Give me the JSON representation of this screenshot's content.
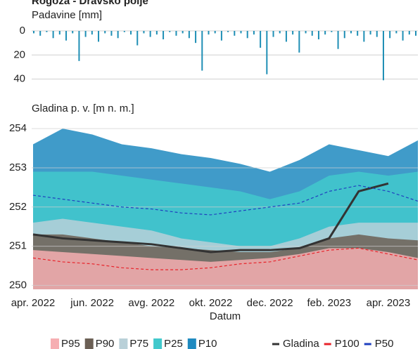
{
  "chart_data": [
    {
      "type": "bar",
      "title": "Rogoza - Dravsko polje",
      "ylabel": "Padavine [mm]",
      "color": "#1f8fb5",
      "ylim": [
        0,
        42
      ],
      "yticks": [
        0,
        20,
        40
      ],
      "inverted": true,
      "grid": true,
      "values": [
        2,
        4,
        1,
        6,
        3,
        8,
        2,
        25,
        5,
        3,
        9,
        2,
        4,
        6,
        1,
        3,
        12,
        2,
        5,
        3,
        7,
        1,
        4,
        2,
        6,
        10,
        33,
        3,
        2,
        8,
        1,
        4,
        2,
        6,
        3,
        14,
        36,
        5,
        2,
        9,
        3,
        18,
        2,
        4,
        7,
        3,
        1,
        15,
        6,
        2,
        4,
        9,
        3,
        5,
        41,
        6,
        2,
        8,
        3,
        4
      ]
    },
    {
      "type": "area",
      "ylabel": "Gladina p. v. [m n. m.]",
      "xlabel": "Datum",
      "x": [
        "2022-04",
        "2022-05",
        "2022-06",
        "2022-07",
        "2022-08",
        "2022-09",
        "2022-10",
        "2022-11",
        "2022-12",
        "2023-01",
        "2023-02",
        "2023-03",
        "2023-04",
        "2023-05"
      ],
      "xlim": [
        "2022-04",
        "2023-05"
      ],
      "xticks": [
        {
          "value": "2022-04",
          "label": "apr. 2022"
        },
        {
          "value": "2022-06",
          "label": "jun. 2022"
        },
        {
          "value": "2022-08",
          "label": "avg. 2022"
        },
        {
          "value": "2022-10",
          "label": "okt. 2022"
        },
        {
          "value": "2022-12",
          "label": "dec. 2022"
        },
        {
          "value": "2023-02",
          "label": "feb. 2023"
        },
        {
          "value": "2023-04",
          "label": "apr. 2023"
        }
      ],
      "ylim": [
        249.9,
        254.2
      ],
      "yticks": [
        250,
        251,
        252,
        253,
        254
      ],
      "grid": true,
      "series": [
        {
          "name": "P95",
          "color": "#f6aeb2",
          "kind": "area",
          "values": [
            250.9,
            250.85,
            250.8,
            250.75,
            250.7,
            250.65,
            250.6,
            250.65,
            250.7,
            250.8,
            250.95,
            250.95,
            250.85,
            250.7
          ]
        },
        {
          "name": "P90",
          "color": "#6b5f55",
          "kind": "area",
          "values": [
            251.3,
            251.3,
            251.2,
            251.1,
            251.0,
            250.95,
            250.9,
            250.85,
            250.85,
            250.95,
            251.2,
            251.3,
            251.2,
            251.15
          ]
        },
        {
          "name": "P75",
          "color": "#b9d0d8",
          "kind": "area",
          "values": [
            251.6,
            251.7,
            251.6,
            251.5,
            251.4,
            251.2,
            251.1,
            251.0,
            251.0,
            251.2,
            251.5,
            251.6,
            251.6,
            251.6
          ]
        },
        {
          "name": "P25",
          "color": "#42c9cc",
          "kind": "area",
          "values": [
            252.9,
            252.9,
            252.9,
            252.8,
            252.7,
            252.6,
            252.5,
            252.4,
            252.2,
            252.4,
            252.8,
            252.9,
            252.8,
            252.9
          ]
        },
        {
          "name": "P10",
          "color": "#1f8ac0",
          "kind": "area",
          "values": [
            253.6,
            254.0,
            253.85,
            253.6,
            253.5,
            253.35,
            253.25,
            253.1,
            252.9,
            253.2,
            253.6,
            253.45,
            253.3,
            253.7
          ]
        },
        {
          "name": "Gladina",
          "color": "#333333",
          "kind": "line",
          "values": [
            251.3,
            251.2,
            251.15,
            251.1,
            251.05,
            250.95,
            250.85,
            250.9,
            250.9,
            250.95,
            251.2,
            252.4,
            252.6,
            null
          ]
        },
        {
          "name": "P100",
          "color": "#e8232a",
          "kind": "dashed",
          "values": [
            250.7,
            250.6,
            250.55,
            250.45,
            250.4,
            250.4,
            250.45,
            250.55,
            250.6,
            250.75,
            250.9,
            250.95,
            250.8,
            250.65
          ]
        },
        {
          "name": "P50",
          "color": "#1f3fbf",
          "kind": "dashed",
          "values": [
            252.3,
            252.2,
            252.1,
            252.0,
            251.95,
            251.85,
            251.8,
            251.9,
            252.0,
            252.1,
            252.4,
            252.55,
            252.4,
            252.15
          ]
        }
      ]
    }
  ]
}
